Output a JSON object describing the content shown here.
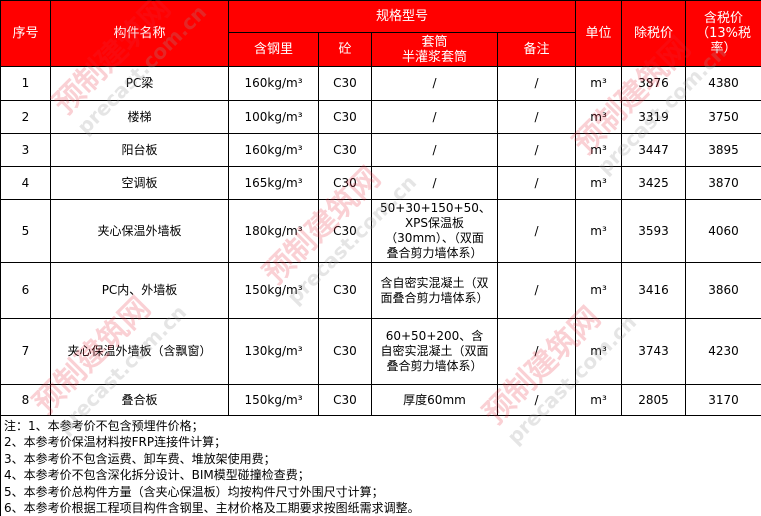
{
  "header": {
    "seq": "序号",
    "name": "构件名称",
    "spec": "规格型号",
    "steel": "含钢里",
    "concrete": "砼",
    "sleeve": "套筒\n半灌浆套筒",
    "remark": "备注",
    "unit": "单位",
    "price_ex": "除税价",
    "price_inc": "含税价（13%税率）"
  },
  "rows": [
    {
      "seq": "1",
      "name": "PC梁",
      "steel": "160kg/m³",
      "concrete": "C30",
      "sleeve": "/",
      "remark": "/",
      "unit": "m³",
      "price_ex": "3876",
      "price_inc": "4380"
    },
    {
      "seq": "2",
      "name": "楼梯",
      "steel": "100kg/m³",
      "concrete": "C30",
      "sleeve": "/",
      "remark": "/",
      "unit": "m³",
      "price_ex": "3319",
      "price_inc": "3750"
    },
    {
      "seq": "3",
      "name": "阳台板",
      "steel": "160kg/m³",
      "concrete": "C30",
      "sleeve": "/",
      "remark": "/",
      "unit": "m³",
      "price_ex": "3447",
      "price_inc": "3895"
    },
    {
      "seq": "4",
      "name": "空调板",
      "steel": "165kg/m³",
      "concrete": "C30",
      "sleeve": "/",
      "remark": "/",
      "unit": "m³",
      "price_ex": "3425",
      "price_inc": "3870"
    },
    {
      "seq": "5",
      "name": "夹心保温外墙板",
      "steel": "180kg/m³",
      "concrete": "C30",
      "sleeve": "50+30+150+50、XPS保温板（30mm）、（双面叠合剪力墙体系）",
      "remark": "/",
      "unit": "m³",
      "price_ex": "3593",
      "price_inc": "4060"
    },
    {
      "seq": "6",
      "name": "PC内、外墙板",
      "steel": "150kg/m³",
      "concrete": "C30",
      "sleeve": "含自密实混凝土（双面叠合剪力墙体系）",
      "remark": "/",
      "unit": "m³",
      "price_ex": "3416",
      "price_inc": "3860"
    },
    {
      "seq": "7",
      "name": "夹心保温外墙板（含飘窗）",
      "steel": "130kg/m³",
      "concrete": "C30",
      "sleeve": "60+50+200、含自密实混凝土（双面叠合剪力墙体系）",
      "remark": "/",
      "unit": "m³",
      "price_ex": "3743",
      "price_inc": "4230"
    },
    {
      "seq": "8",
      "name": "叠合板",
      "steel": "150kg/m³",
      "concrete": "C30",
      "sleeve": "厚度60mm",
      "remark": "/",
      "unit": "m³",
      "price_ex": "2805",
      "price_inc": "3170"
    }
  ],
  "notes": [
    "注：1、本参考价不包含预埋件价格；",
    "2、本参考价保温材料按FRP连接件计算；",
    "3、本参考价不包含运费、卸车费、堆放架使用费；",
    "4、本参考价不包含深化拆分设计、BIM模型碰撞检查费；",
    "5、本参考价总构件方量（含夹心保温板）均按构件尺寸外围尺寸计算；",
    "6、本参考价根据工程项目构件含钢里、主材价格及工期要求按图纸需求调整。"
  ],
  "watermark": {
    "logo": "预制建筑网",
    "site": "precast.com.cn"
  },
  "colors": {
    "header_bg": "#ff0000",
    "header_text": "#ffffff"
  }
}
